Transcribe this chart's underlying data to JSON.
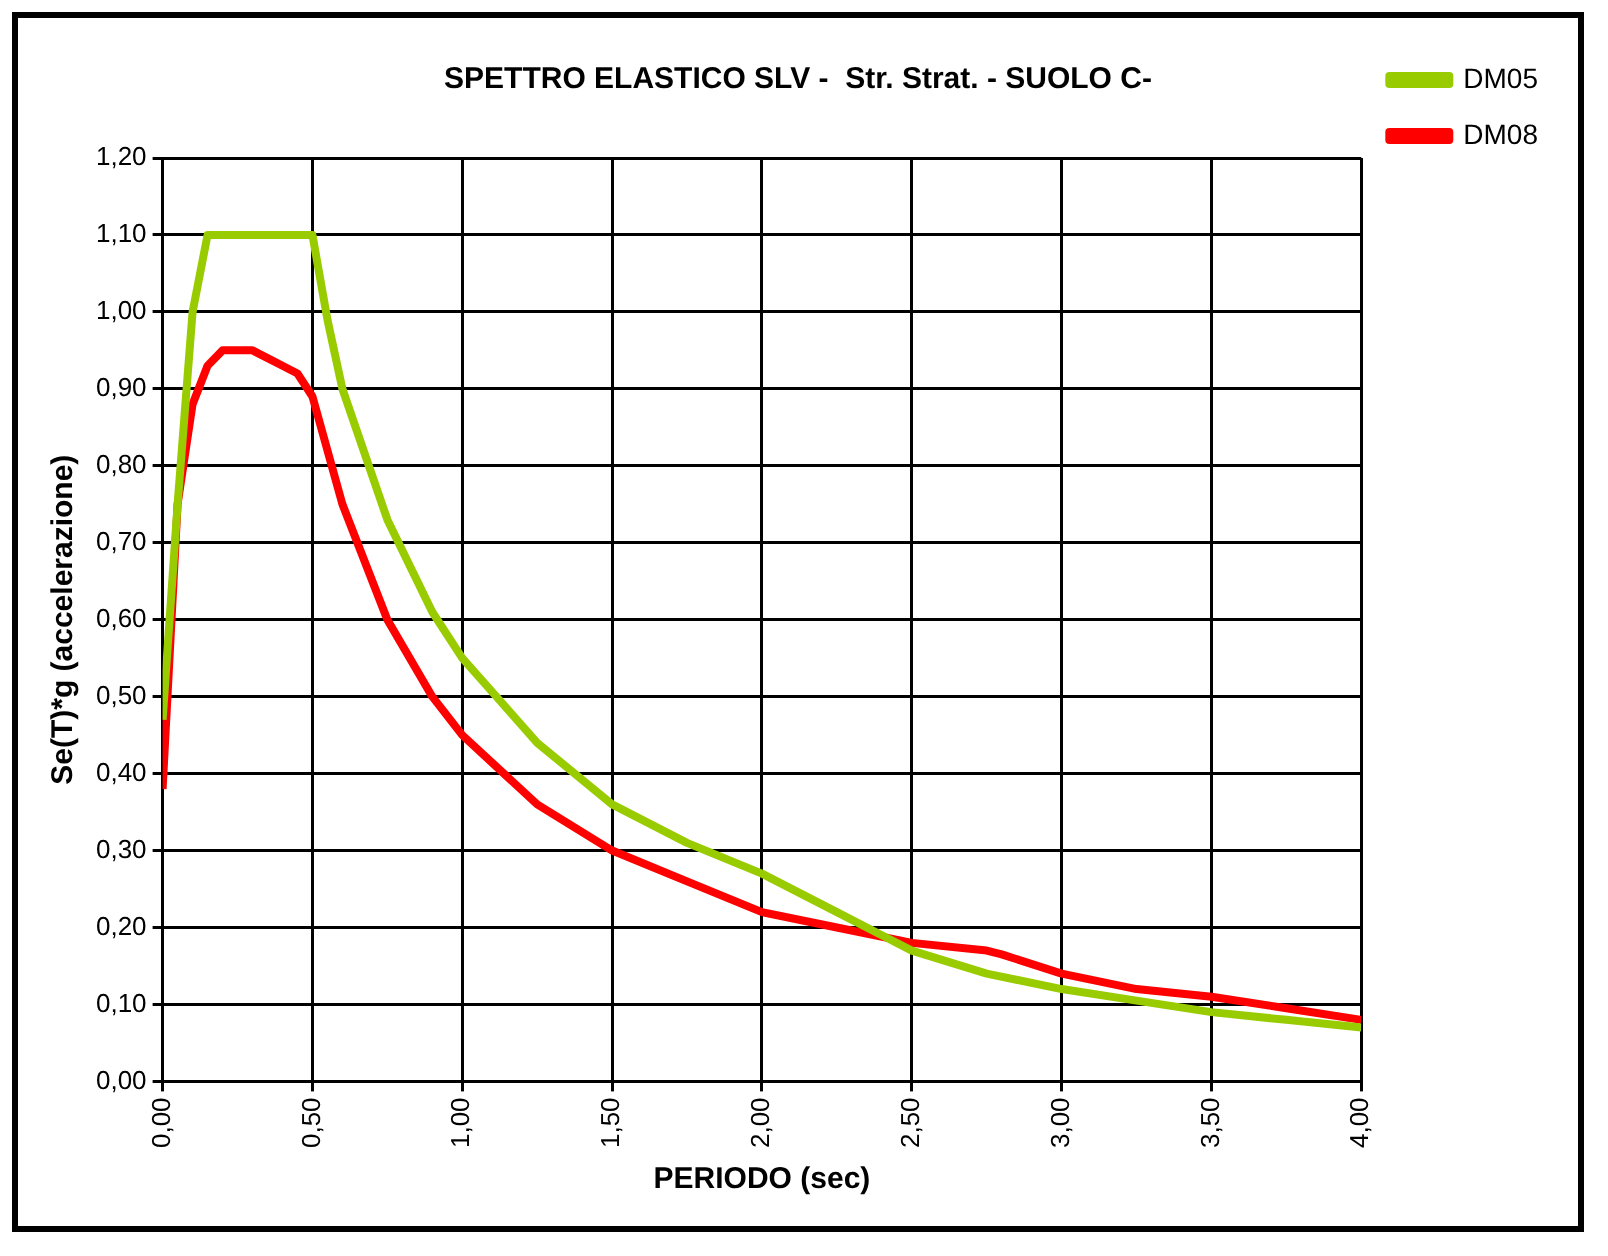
{
  "chart_data": {
    "type": "line",
    "title": "SPETTRO ELASTICO SLV -  Str. Strat. - SUOLO C-",
    "xlabel": "PERIODO (sec)",
    "ylabel": "Se(T)*g (accelerazione)",
    "xlim": [
      0,
      4
    ],
    "xticks": [
      {
        "value": 0,
        "label": "0,00"
      },
      {
        "value": 0.5,
        "label": "0,50"
      },
      {
        "value": 1,
        "label": "1,00"
      },
      {
        "value": 1.5,
        "label": "1,50"
      },
      {
        "value": 2,
        "label": "2,00"
      },
      {
        "value": 2.5,
        "label": "2,50"
      },
      {
        "value": 3,
        "label": "3,00"
      },
      {
        "value": 3.5,
        "label": "3,50"
      },
      {
        "value": 4,
        "label": "4,00"
      }
    ],
    "ylim": [
      0,
      1.2
    ],
    "yticks": [
      {
        "value": 0,
        "label": "0,00"
      },
      {
        "value": 0.1,
        "label": "0,10"
      },
      {
        "value": 0.2,
        "label": "0,20"
      },
      {
        "value": 0.3,
        "label": "0,30"
      },
      {
        "value": 0.4,
        "label": "0,40"
      },
      {
        "value": 0.5,
        "label": "0,50"
      },
      {
        "value": 0.6,
        "label": "0,60"
      },
      {
        "value": 0.7,
        "label": "0,70"
      },
      {
        "value": 0.8,
        "label": "0,80"
      },
      {
        "value": 0.9,
        "label": "0,90"
      },
      {
        "value": 1,
        "label": "1,00"
      },
      {
        "value": 1.1,
        "label": "1,10"
      },
      {
        "value": 1.2,
        "label": "1,20"
      }
    ],
    "grid": true,
    "legend": "top right",
    "marker": "none",
    "line_style": "solid",
    "series": [
      {
        "name": "DM05",
        "color": "#99cc00",
        "x": [
          0,
          0.05,
          0.1,
          0.15,
          0.5,
          0.55,
          0.6,
          0.75,
          0.9,
          1,
          1.25,
          1.5,
          1.75,
          2,
          2.25,
          2.4,
          2.5,
          2.75,
          3,
          3.25,
          3.5,
          3.75,
          4
        ],
        "values": [
          0.47,
          0.75,
          1.0,
          1.1,
          1.1,
          0.99,
          0.9,
          0.73,
          0.61,
          0.55,
          0.44,
          0.36,
          0.31,
          0.27,
          0.22,
          0.19,
          0.17,
          0.14,
          0.12,
          0.105,
          0.09,
          0.08,
          0.07
        ]
      },
      {
        "name": "DM08",
        "color": "#ff0000",
        "x": [
          0,
          0.05,
          0.1,
          0.15,
          0.2,
          0.3,
          0.4,
          0.45,
          0.5,
          0.6,
          0.75,
          0.9,
          1,
          1.25,
          1.5,
          1.75,
          2,
          2.25,
          2.5,
          2.75,
          2.8,
          3,
          3.25,
          3.5,
          3.75,
          4
        ],
        "values": [
          0.38,
          0.75,
          0.88,
          0.93,
          0.95,
          0.95,
          0.93,
          0.92,
          0.89,
          0.75,
          0.6,
          0.5,
          0.45,
          0.36,
          0.3,
          0.26,
          0.22,
          0.2,
          0.18,
          0.17,
          0.165,
          0.14,
          0.12,
          0.11,
          0.095,
          0.08
        ]
      }
    ]
  }
}
